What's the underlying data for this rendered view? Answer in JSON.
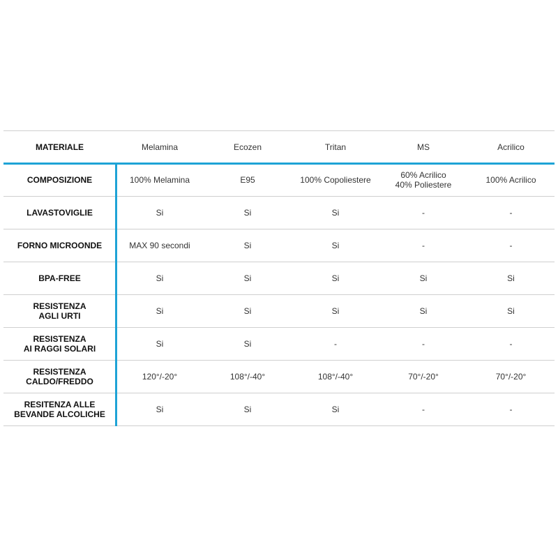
{
  "table": {
    "header": [
      "MATERIALE",
      "Melamina",
      "Ecozen",
      "Tritan",
      "MS",
      "Acrilico"
    ],
    "rows": [
      [
        "COMPOSIZIONE",
        "100% Melamina",
        "E95",
        "100% Copoliestere",
        "60% Acrilico\n40% Poliestere",
        "100% Acrilico"
      ],
      [
        "LAVASTOVIGLIE",
        "Si",
        "Si",
        "Si",
        "-",
        "-"
      ],
      [
        "FORNO MICROONDE",
        "MAX 90 secondi",
        "Si",
        "Si",
        "-",
        "-"
      ],
      [
        "BPA-FREE",
        "Si",
        "Si",
        "Si",
        "Si",
        "Si"
      ],
      [
        "RESISTENZA\nAGLI URTI",
        "Si",
        "Si",
        "Si",
        "Si",
        "Si"
      ],
      [
        "RESISTENZA\nAI RAGGI SOLARI",
        "Si",
        "Si",
        "-",
        "-",
        "-"
      ],
      [
        "RESISTENZA\nCALDO/FREDDO",
        "120°/-20°",
        "108°/-40°",
        "108°/-40°",
        "70°/-20°",
        "70°/-20°"
      ],
      [
        "RESITENZA ALLE\nBEVANDE ALCOLICHE",
        "Si",
        "Si",
        "Si",
        "-",
        "-"
      ]
    ]
  }
}
